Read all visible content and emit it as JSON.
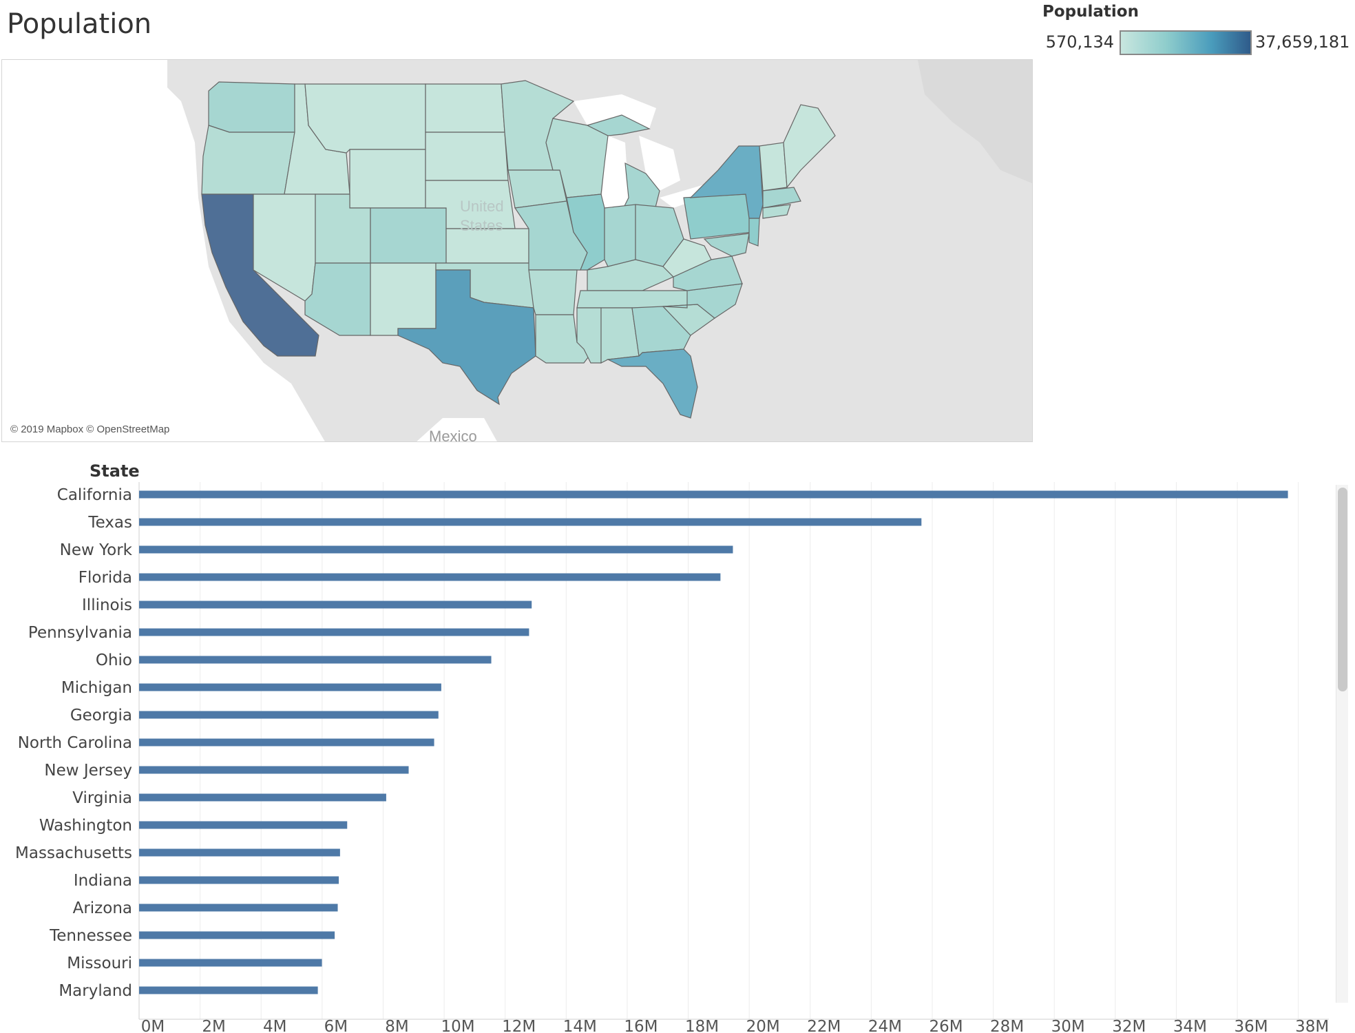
{
  "page": {
    "title": "Population"
  },
  "legend": {
    "title": "Population",
    "min_label": "570,134",
    "max_label": "37,659,181",
    "colors": [
      "#c8e6df",
      "#8fcdcc",
      "#4a9cbc",
      "#2f5b8a"
    ]
  },
  "map": {
    "credit": "© 2019 Mapbox © OpenStreetMap",
    "labels": {
      "country": "United States",
      "country_line1": "United",
      "country_line2": "States",
      "south": "Mexico"
    },
    "colors": {
      "land": "#e4e4e4",
      "water": "#ffffff",
      "state_low": "#c6e5dc",
      "state_mid": "#a3d3cf",
      "state_high": "#5b9fbb",
      "state_top": "#4f6f96",
      "border": "#555555"
    }
  },
  "chart_data": {
    "type": "bar",
    "orientation": "horizontal",
    "ylabel": "State",
    "categories": [
      "California",
      "Texas",
      "New York",
      "Florida",
      "Illinois",
      "Pennsylvania",
      "Ohio",
      "Michigan",
      "Georgia",
      "North Carolina",
      "New Jersey",
      "Virginia",
      "Washington",
      "Massachusetts",
      "Indiana",
      "Arizona",
      "Tennessee",
      "Missouri",
      "Maryland"
    ],
    "values": [
      37659181,
      25645629,
      19465197,
      19057542,
      12869257,
      12783538,
      11544951,
      9906089,
      9812280,
      9672451,
      8836639,
      8100700,
      6821740,
      6587536,
      6545999,
      6512000,
      6411840,
      5993410,
      5859467
    ],
    "xlim": [
      0,
      39000000
    ],
    "xticks": [
      0,
      2000000,
      4000000,
      6000000,
      8000000,
      10000000,
      12000000,
      14000000,
      16000000,
      18000000,
      20000000,
      22000000,
      24000000,
      26000000,
      28000000,
      30000000,
      32000000,
      34000000,
      36000000,
      38000000
    ],
    "xtick_labels": [
      "0M",
      "2M",
      "4M",
      "6M",
      "8M",
      "10M",
      "12M",
      "14M",
      "16M",
      "18M",
      "20M",
      "22M",
      "24M",
      "26M",
      "28M",
      "30M",
      "32M",
      "34M",
      "36M",
      "38M"
    ],
    "bar_color": "#4e79a7",
    "grid": true
  }
}
